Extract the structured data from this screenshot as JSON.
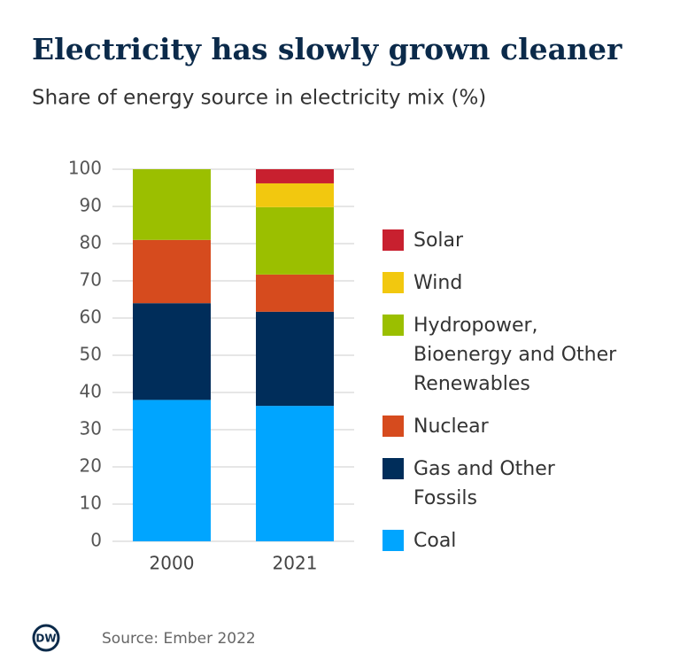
{
  "chart_data": {
    "type": "stacked-bar",
    "title": "Electricity has slowly grown cleaner",
    "subtitle": "Share of energy source in electricity mix (%)",
    "categories": [
      "2000",
      "2021"
    ],
    "series": [
      {
        "name": "Coal",
        "color": "#00a5ff",
        "values": [
          38,
          36.4
        ]
      },
      {
        "name": "Gas and Other Fossils",
        "color": "#002d5a",
        "values": [
          26,
          25.3
        ]
      },
      {
        "name": "Nuclear",
        "color": "#d64b1e",
        "values": [
          17,
          10
        ]
      },
      {
        "name": "Hydropower, Bioenergy and Other Renewables",
        "color": "#9bbf00",
        "values": [
          19,
          18.1
        ]
      },
      {
        "name": "Wind",
        "color": "#f2c80f",
        "values": [
          0,
          6.4
        ]
      },
      {
        "name": "Solar",
        "color": "#c8202f",
        "values": [
          0,
          3.8
        ]
      }
    ],
    "ylim": [
      0,
      100
    ],
    "yticks": [
      0,
      10,
      20,
      30,
      40,
      50,
      60,
      70,
      80,
      90,
      100
    ],
    "grid": true,
    "legend": "right",
    "source": "Source: Ember 2022",
    "logo": "DW"
  }
}
